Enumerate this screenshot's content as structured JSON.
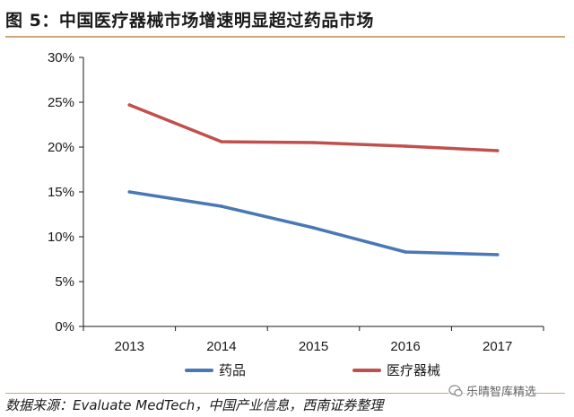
{
  "figure_title": "图 5：中国医疗器械市场增速明显超过药品市场",
  "source_note": "数据来源：Evaluate MedTech，中国产业信息，西南证券整理",
  "watermark": "乐晴智库精选",
  "colors": {
    "drug": "#4a78b5",
    "device": "#c0504d",
    "axis": "#1a1a1a",
    "rule": "#c9a979"
  },
  "chart_data": {
    "type": "line",
    "title": "中国医疗器械市场增速明显超过药品市场",
    "xlabel": "",
    "ylabel": "",
    "categories": [
      "2013",
      "2014",
      "2015",
      "2016",
      "2017"
    ],
    "ylim": [
      0,
      30
    ],
    "yticks": [
      0,
      5,
      10,
      15,
      20,
      25,
      30
    ],
    "ytick_labels": [
      "0%",
      "5%",
      "10%",
      "15%",
      "20%",
      "25%",
      "30%"
    ],
    "grid": false,
    "legend_position": "bottom",
    "series": [
      {
        "name": "药品",
        "color_key": "drug",
        "values": [
          15.0,
          13.4,
          11.0,
          8.3,
          8.0
        ]
      },
      {
        "name": "医疗器械",
        "color_key": "device",
        "values": [
          24.7,
          20.6,
          20.5,
          20.1,
          19.6
        ]
      }
    ]
  }
}
